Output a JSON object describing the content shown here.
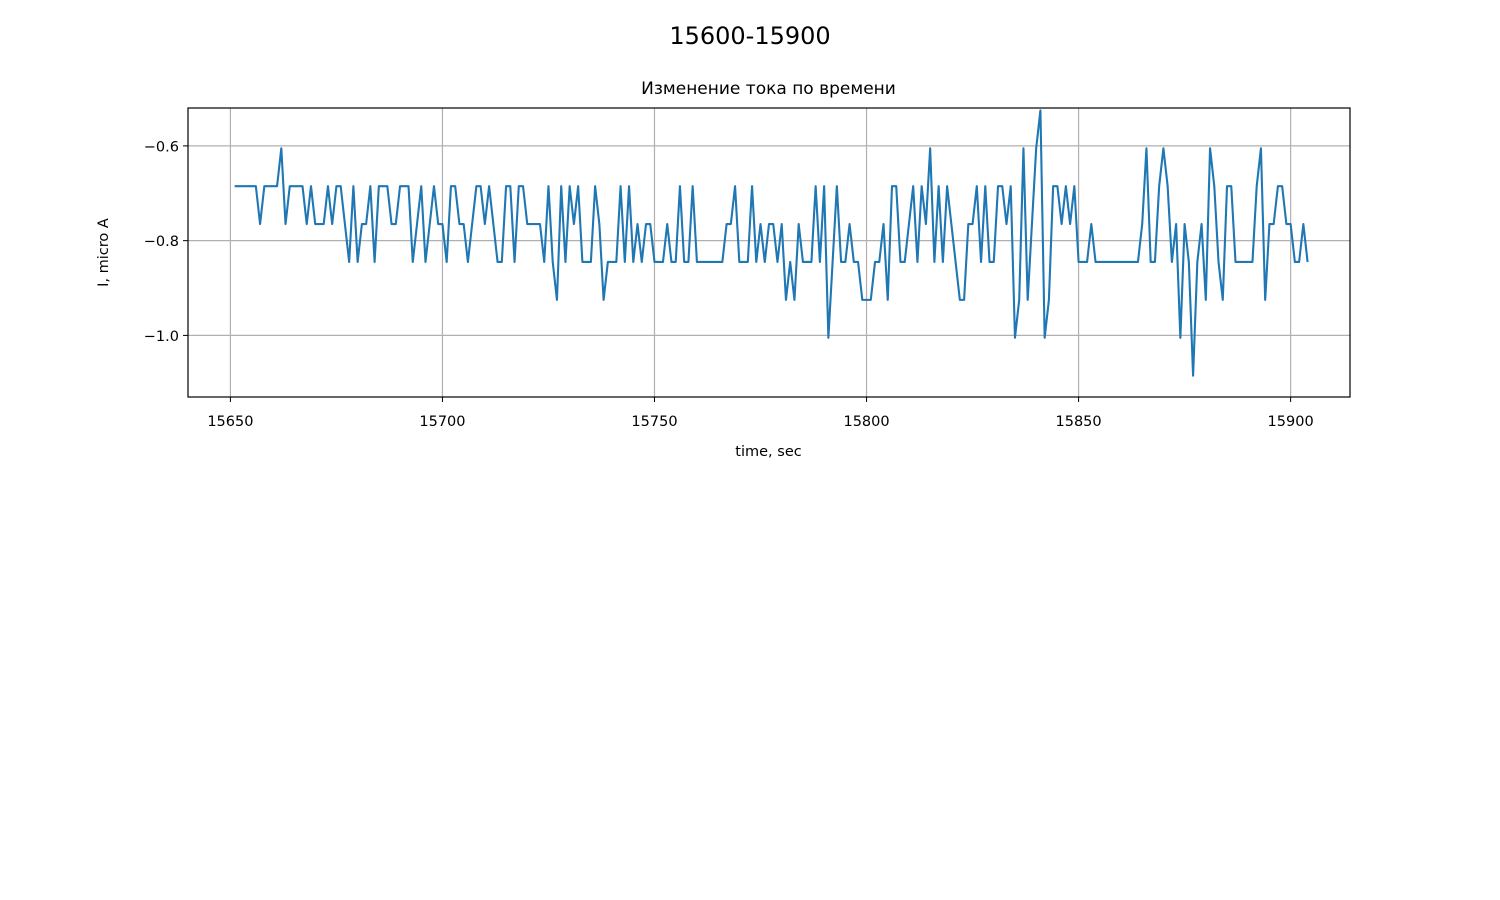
{
  "figure": {
    "suptitle": "15600-15900"
  },
  "chart_data": {
    "type": "line",
    "title": "Изменение тока по времени",
    "xlabel": "time, sec",
    "ylabel": "I, micro A",
    "xlim": [
      15640,
      15914
    ],
    "ylim": [
      -1.13,
      -0.52
    ],
    "xticks": [
      15650,
      15700,
      15750,
      15800,
      15850,
      15900
    ],
    "xtick_labels": [
      "15650",
      "15700",
      "15750",
      "15800",
      "15850",
      "15900"
    ],
    "yticks": [
      -0.6,
      -0.8,
      -1.0
    ],
    "ytick_labels": [
      "−0.6",
      "−0.8",
      "−1.0"
    ],
    "grid": true,
    "colors": {
      "line": "#1f77b4"
    },
    "series": [
      {
        "x_start": 15651,
        "x_step": 1,
        "values": [
          -0.685,
          -0.685,
          -0.685,
          -0.685,
          -0.685,
          -0.685,
          -0.765,
          -0.685,
          -0.685,
          -0.685,
          -0.685,
          -0.605,
          -0.765,
          -0.685,
          -0.685,
          -0.685,
          -0.685,
          -0.765,
          -0.685,
          -0.765,
          -0.765,
          -0.765,
          -0.685,
          -0.765,
          -0.685,
          -0.685,
          -0.765,
          -0.845,
          -0.685,
          -0.845,
          -0.765,
          -0.765,
          -0.685,
          -0.845,
          -0.685,
          -0.685,
          -0.685,
          -0.765,
          -0.765,
          -0.685,
          -0.685,
          -0.685,
          -0.845,
          -0.765,
          -0.685,
          -0.845,
          -0.765,
          -0.685,
          -0.765,
          -0.765,
          -0.845,
          -0.685,
          -0.685,
          -0.765,
          -0.765,
          -0.845,
          -0.765,
          -0.685,
          -0.685,
          -0.765,
          -0.685,
          -0.765,
          -0.845,
          -0.845,
          -0.685,
          -0.685,
          -0.845,
          -0.685,
          -0.685,
          -0.765,
          -0.765,
          -0.765,
          -0.765,
          -0.845,
          -0.685,
          -0.845,
          -0.925,
          -0.685,
          -0.845,
          -0.685,
          -0.765,
          -0.685,
          -0.845,
          -0.845,
          -0.845,
          -0.685,
          -0.765,
          -0.925,
          -0.845,
          -0.845,
          -0.845,
          -0.685,
          -0.845,
          -0.685,
          -0.845,
          -0.765,
          -0.845,
          -0.765,
          -0.765,
          -0.845,
          -0.845,
          -0.845,
          -0.765,
          -0.845,
          -0.845,
          -0.685,
          -0.845,
          -0.845,
          -0.685,
          -0.845,
          -0.845,
          -0.845,
          -0.845,
          -0.845,
          -0.845,
          -0.845,
          -0.765,
          -0.765,
          -0.685,
          -0.845,
          -0.845,
          -0.845,
          -0.685,
          -0.845,
          -0.765,
          -0.845,
          -0.765,
          -0.765,
          -0.845,
          -0.765,
          -0.925,
          -0.845,
          -0.925,
          -0.765,
          -0.845,
          -0.845,
          -0.845,
          -0.685,
          -0.845,
          -0.685,
          -1.005,
          -0.845,
          -0.685,
          -0.845,
          -0.845,
          -0.765,
          -0.845,
          -0.845,
          -0.925,
          -0.925,
          -0.925,
          -0.845,
          -0.845,
          -0.765,
          -0.925,
          -0.685,
          -0.685,
          -0.845,
          -0.845,
          -0.765,
          -0.685,
          -0.845,
          -0.685,
          -0.765,
          -0.605,
          -0.845,
          -0.685,
          -0.845,
          -0.685,
          -0.765,
          -0.845,
          -0.925,
          -0.925,
          -0.765,
          -0.765,
          -0.685,
          -0.845,
          -0.685,
          -0.845,
          -0.845,
          -0.685,
          -0.685,
          -0.765,
          -0.685,
          -1.005,
          -0.925,
          -0.605,
          -0.925,
          -0.765,
          -0.605,
          -0.525,
          -1.005,
          -0.925,
          -0.685,
          -0.685,
          -0.765,
          -0.685,
          -0.765,
          -0.685,
          -0.845,
          -0.845,
          -0.845,
          -0.765,
          -0.845,
          -0.845,
          -0.845,
          -0.845,
          -0.845,
          -0.845,
          -0.845,
          -0.845,
          -0.845,
          -0.845,
          -0.845,
          -0.765,
          -0.605,
          -0.845,
          -0.845,
          -0.685,
          -0.605,
          -0.685,
          -0.845,
          -0.765,
          -1.005,
          -0.765,
          -0.845,
          -1.085,
          -0.845,
          -0.765,
          -0.925,
          -0.605,
          -0.685,
          -0.845,
          -0.925,
          -0.685,
          -0.685,
          -0.845,
          -0.845,
          -0.845,
          -0.845,
          -0.845,
          -0.685,
          -0.605,
          -0.925,
          -0.765,
          -0.765,
          -0.685,
          -0.685,
          -0.765,
          -0.765,
          -0.845,
          -0.845,
          -0.765,
          -0.845
        ]
      }
    ]
  }
}
